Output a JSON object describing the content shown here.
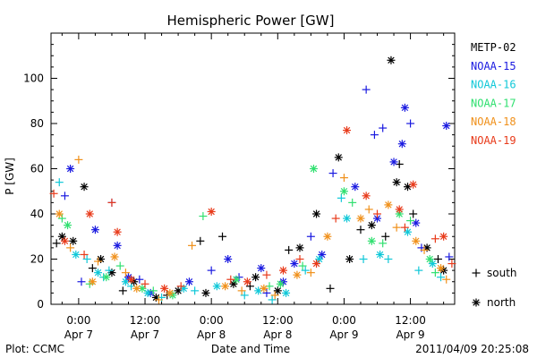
{
  "chart_data": {
    "type": "scatter",
    "title": "Hemispheric Power [GW]",
    "xlabel": "Date and Time",
    "ylabel": "P [GW]",
    "ylim": [
      0,
      120
    ],
    "yticks": [
      0,
      20,
      40,
      60,
      80,
      100
    ],
    "xlim": [
      "2011-04-06T19:00",
      "2011-04-09T20:00"
    ],
    "xticks": [
      {
        "t": "2011-04-07T00:00",
        "time": "0:00",
        "date": "Apr 7"
      },
      {
        "t": "2011-04-07T12:00",
        "time": "12:00",
        "date": "Apr 7"
      },
      {
        "t": "2011-04-08T00:00",
        "time": "0:00",
        "date": "Apr 8"
      },
      {
        "t": "2011-04-08T12:00",
        "time": "12:00",
        "date": "Apr 8"
      },
      {
        "t": "2011-04-09T00:00",
        "time": "0:00",
        "date": "Apr 9"
      },
      {
        "t": "2011-04-09T12:00",
        "time": "12:00",
        "date": "Apr 9"
      }
    ],
    "grid": false,
    "legend_position": "right",
    "marker_legend": {
      "south": "south",
      "north": "north"
    },
    "series": [
      {
        "name": "METP-02",
        "color": "#000000",
        "south": [
          [
            "2011-04-06T20:00",
            27
          ],
          [
            "2011-04-07T02:30",
            16
          ],
          [
            "2011-04-07T08:00",
            6
          ],
          [
            "2011-04-07T16:00",
            4
          ],
          [
            "2011-04-08T02:00",
            30
          ],
          [
            "2011-04-08T07:00",
            8
          ],
          [
            "2011-04-08T14:00",
            24
          ],
          [
            "2011-04-08T21:30",
            7
          ],
          [
            "2011-04-09T03:00",
            33
          ],
          [
            "2011-04-09T07:30",
            30
          ],
          [
            "2011-04-09T12:30",
            40
          ],
          [
            "2011-04-09T17:00",
            20
          ],
          [
            "2011-04-07T22:00",
            28
          ],
          [
            "2011-04-09T10:00",
            62
          ]
        ],
        "north": [
          [
            "2011-04-06T21:00",
            30
          ],
          [
            "2011-04-06T23:00",
            28
          ],
          [
            "2011-04-07T01:00",
            52
          ],
          [
            "2011-04-07T04:00",
            20
          ],
          [
            "2011-04-07T06:00",
            14
          ],
          [
            "2011-04-07T10:00",
            10
          ],
          [
            "2011-04-07T14:00",
            3
          ],
          [
            "2011-04-07T18:00",
            6
          ],
          [
            "2011-04-07T23:00",
            5
          ],
          [
            "2011-04-08T04:00",
            9
          ],
          [
            "2011-04-08T08:00",
            12
          ],
          [
            "2011-04-08T12:00",
            6
          ],
          [
            "2011-04-08T16:00",
            25
          ],
          [
            "2011-04-08T19:00",
            40
          ],
          [
            "2011-04-08T23:00",
            65
          ],
          [
            "2011-04-09T01:00",
            20
          ],
          [
            "2011-04-09T05:00",
            35
          ],
          [
            "2011-04-09T08:30",
            108
          ],
          [
            "2011-04-09T09:30",
            54
          ],
          [
            "2011-04-09T11:30",
            52
          ],
          [
            "2011-04-09T15:00",
            25
          ],
          [
            "2011-04-09T18:00",
            15
          ]
        ]
      },
      {
        "name": "NOAA-15",
        "color": "#1a1ae0",
        "south": [
          [
            "2011-04-06T21:30",
            48
          ],
          [
            "2011-04-07T00:30",
            10
          ],
          [
            "2011-04-07T06:00",
            45
          ],
          [
            "2011-04-07T11:00",
            11
          ],
          [
            "2011-04-08T00:00",
            15
          ],
          [
            "2011-04-08T10:00",
            5
          ],
          [
            "2011-04-08T18:00",
            30
          ],
          [
            "2011-04-08T22:00",
            58
          ],
          [
            "2011-04-09T04:00",
            95
          ],
          [
            "2011-04-09T05:30",
            75
          ],
          [
            "2011-04-09T07:00",
            78
          ],
          [
            "2011-04-09T12:00",
            80
          ],
          [
            "2011-04-09T14:00",
            25
          ],
          [
            "2011-04-09T19:00",
            21
          ],
          [
            "2011-04-08T05:00",
            12
          ]
        ],
        "north": [
          [
            "2011-04-06T22:30",
            60
          ],
          [
            "2011-04-07T03:00",
            33
          ],
          [
            "2011-04-07T07:00",
            26
          ],
          [
            "2011-04-07T09:00",
            12
          ],
          [
            "2011-04-07T13:00",
            5
          ],
          [
            "2011-04-07T20:00",
            10
          ],
          [
            "2011-04-08T03:00",
            20
          ],
          [
            "2011-04-08T09:00",
            16
          ],
          [
            "2011-04-08T15:00",
            18
          ],
          [
            "2011-04-08T20:00",
            22
          ],
          [
            "2011-04-09T02:00",
            52
          ],
          [
            "2011-04-09T06:00",
            38
          ],
          [
            "2011-04-09T09:00",
            63
          ],
          [
            "2011-04-09T10:30",
            71
          ],
          [
            "2011-04-09T11:00",
            87
          ],
          [
            "2011-04-09T13:00",
            36
          ],
          [
            "2011-04-09T18:30",
            79
          ],
          [
            "2011-04-08T13:00",
            10
          ]
        ]
      },
      {
        "name": "NOAA-16",
        "color": "#10c8d8",
        "south": [
          [
            "2011-04-06T20:30",
            54
          ],
          [
            "2011-04-07T01:30",
            20
          ],
          [
            "2011-04-07T04:30",
            12
          ],
          [
            "2011-04-07T09:30",
            8
          ],
          [
            "2011-04-07T15:00",
            3
          ],
          [
            "2011-04-07T21:00",
            6
          ],
          [
            "2011-04-08T06:00",
            4
          ],
          [
            "2011-04-08T11:00",
            2
          ],
          [
            "2011-04-08T17:00",
            15
          ],
          [
            "2011-04-08T23:30",
            47
          ],
          [
            "2011-04-09T03:30",
            20
          ],
          [
            "2011-04-09T08:00",
            20
          ],
          [
            "2011-04-09T13:30",
            15
          ],
          [
            "2011-04-09T17:30",
            12
          ],
          [
            "2011-04-07T05:30",
            15
          ]
        ],
        "north": [
          [
            "2011-04-06T23:30",
            22
          ],
          [
            "2011-04-07T03:30",
            14
          ],
          [
            "2011-04-07T08:30",
            10
          ],
          [
            "2011-04-07T12:30",
            5
          ],
          [
            "2011-04-07T19:00",
            7
          ],
          [
            "2011-04-08T01:00",
            8
          ],
          [
            "2011-04-08T08:30",
            6
          ],
          [
            "2011-04-08T13:30",
            5
          ],
          [
            "2011-04-08T19:30",
            20
          ],
          [
            "2011-04-09T00:30",
            38
          ],
          [
            "2011-04-09T06:30",
            22
          ],
          [
            "2011-04-09T11:30",
            32
          ],
          [
            "2011-04-09T16:00",
            18
          ]
        ]
      },
      {
        "name": "NOAA-17",
        "color": "#30e070",
        "south": [
          [
            "2011-04-06T21:00",
            38
          ],
          [
            "2011-04-07T02:00",
            9
          ],
          [
            "2011-04-07T07:30",
            17
          ],
          [
            "2011-04-07T13:30",
            6
          ],
          [
            "2011-04-07T22:30",
            39
          ],
          [
            "2011-04-08T10:30",
            8
          ],
          [
            "2011-04-08T16:30",
            17
          ],
          [
            "2011-04-09T01:30",
            45
          ],
          [
            "2011-04-09T07:00",
            27
          ],
          [
            "2011-04-09T12:00",
            37
          ],
          [
            "2011-04-09T16:30",
            14
          ]
        ],
        "north": [
          [
            "2011-04-06T22:00",
            35
          ],
          [
            "2011-04-07T05:00",
            12
          ],
          [
            "2011-04-07T11:30",
            7
          ],
          [
            "2011-04-07T17:00",
            4
          ],
          [
            "2011-04-08T04:30",
            11
          ],
          [
            "2011-04-08T12:30",
            9
          ],
          [
            "2011-04-08T18:30",
            60
          ],
          [
            "2011-04-09T00:00",
            50
          ],
          [
            "2011-04-09T05:00",
            28
          ],
          [
            "2011-04-09T10:00",
            40
          ],
          [
            "2011-04-09T15:30",
            20
          ]
        ]
      },
      {
        "name": "NOAA-18",
        "color": "#f0901a",
        "south": [
          [
            "2011-04-06T22:30",
            25
          ],
          [
            "2011-04-07T00:00",
            64
          ],
          [
            "2011-04-07T03:30",
            19
          ],
          [
            "2011-04-07T08:30",
            14
          ],
          [
            "2011-04-07T14:30",
            2
          ],
          [
            "2011-04-07T20:30",
            26
          ],
          [
            "2011-04-08T05:30",
            6
          ],
          [
            "2011-04-08T11:30",
            4
          ],
          [
            "2011-04-08T18:00",
            14
          ],
          [
            "2011-04-09T00:00",
            56
          ],
          [
            "2011-04-09T04:30",
            42
          ],
          [
            "2011-04-09T09:30",
            34
          ],
          [
            "2011-04-09T14:30",
            24
          ],
          [
            "2011-04-09T18:30",
            11
          ]
        ],
        "north": [
          [
            "2011-04-06T20:30",
            40
          ],
          [
            "2011-04-07T02:30",
            10
          ],
          [
            "2011-04-07T06:30",
            21
          ],
          [
            "2011-04-07T10:30",
            7
          ],
          [
            "2011-04-07T16:30",
            5
          ],
          [
            "2011-04-08T02:30",
            8
          ],
          [
            "2011-04-08T09:30",
            7
          ],
          [
            "2011-04-08T15:30",
            13
          ],
          [
            "2011-04-08T21:00",
            30
          ],
          [
            "2011-04-09T03:00",
            38
          ],
          [
            "2011-04-09T08:00",
            44
          ],
          [
            "2011-04-09T13:00",
            28
          ],
          [
            "2011-04-09T17:30",
            16
          ]
        ]
      },
      {
        "name": "NOAA-19",
        "color": "#e83a1a",
        "south": [
          [
            "2011-04-06T19:30",
            49
          ],
          [
            "2011-04-07T01:00",
            22
          ],
          [
            "2011-04-07T06:00",
            45
          ],
          [
            "2011-04-07T12:00",
            9
          ],
          [
            "2011-04-07T18:30",
            8
          ],
          [
            "2011-04-08T03:30",
            11
          ],
          [
            "2011-04-08T10:00",
            13
          ],
          [
            "2011-04-08T16:00",
            20
          ],
          [
            "2011-04-08T22:30",
            38
          ],
          [
            "2011-04-09T06:00",
            40
          ],
          [
            "2011-04-09T11:00",
            34
          ],
          [
            "2011-04-09T16:30",
            29
          ],
          [
            "2011-04-09T19:30",
            18
          ]
        ],
        "north": [
          [
            "2011-04-06T21:30",
            28
          ],
          [
            "2011-04-07T02:00",
            40
          ],
          [
            "2011-04-07T07:00",
            32
          ],
          [
            "2011-04-07T09:30",
            11
          ],
          [
            "2011-04-07T15:30",
            7
          ],
          [
            "2011-04-08T00:00",
            41
          ],
          [
            "2011-04-08T06:30",
            10
          ],
          [
            "2011-04-08T13:00",
            15
          ],
          [
            "2011-04-08T19:00",
            18
          ],
          [
            "2011-04-09T00:30",
            77
          ],
          [
            "2011-04-09T04:00",
            48
          ],
          [
            "2011-04-09T10:00",
            42
          ],
          [
            "2011-04-09T12:30",
            53
          ],
          [
            "2011-04-09T18:00",
            30
          ]
        ]
      }
    ]
  },
  "footer": {
    "plot_credit": "Plot: CCMC",
    "timestamp": "2011/04/09 20:25:08"
  }
}
